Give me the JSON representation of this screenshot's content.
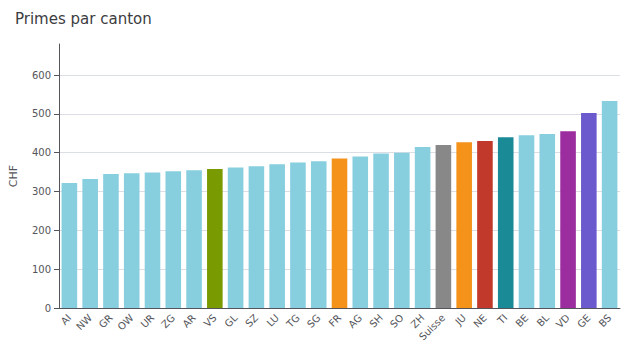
{
  "chart_data": {
    "type": "bar",
    "title": "Primes par canton",
    "ylabel": "CHF",
    "categories": [
      "AI",
      "NW",
      "GR",
      "OW",
      "UR",
      "ZG",
      "AR",
      "VS",
      "GL",
      "SZ",
      "LU",
      "TG",
      "SG",
      "FR",
      "AG",
      "SH",
      "SO",
      "ZH",
      "Suisse",
      "JU",
      "NE",
      "TI",
      "BE",
      "BL",
      "VD",
      "GE",
      "BS"
    ],
    "values": [
      322,
      332,
      345,
      347,
      349,
      352,
      355,
      358,
      362,
      365,
      370,
      375,
      378,
      385,
      390,
      398,
      400,
      415,
      420,
      427,
      430,
      440,
      445,
      448,
      455,
      502,
      533
    ],
    "colors": [
      "#87CEDF",
      "#87CEDF",
      "#87CEDF",
      "#87CEDF",
      "#87CEDF",
      "#87CEDF",
      "#87CEDF",
      "#7a9a01",
      "#87CEDF",
      "#87CEDF",
      "#87CEDF",
      "#87CEDF",
      "#87CEDF",
      "#f4921a",
      "#87CEDF",
      "#87CEDF",
      "#87CEDF",
      "#87CEDF",
      "#888888",
      "#f4921a",
      "#c0392b",
      "#1a8a96",
      "#87CEDF",
      "#87CEDF",
      "#9b2d9e",
      "#6a5acd",
      "#87CEDF"
    ],
    "ylim": [
      0,
      680
    ],
    "yticks": [
      0,
      100,
      200,
      300,
      400,
      500,
      600
    ],
    "grid": true
  }
}
